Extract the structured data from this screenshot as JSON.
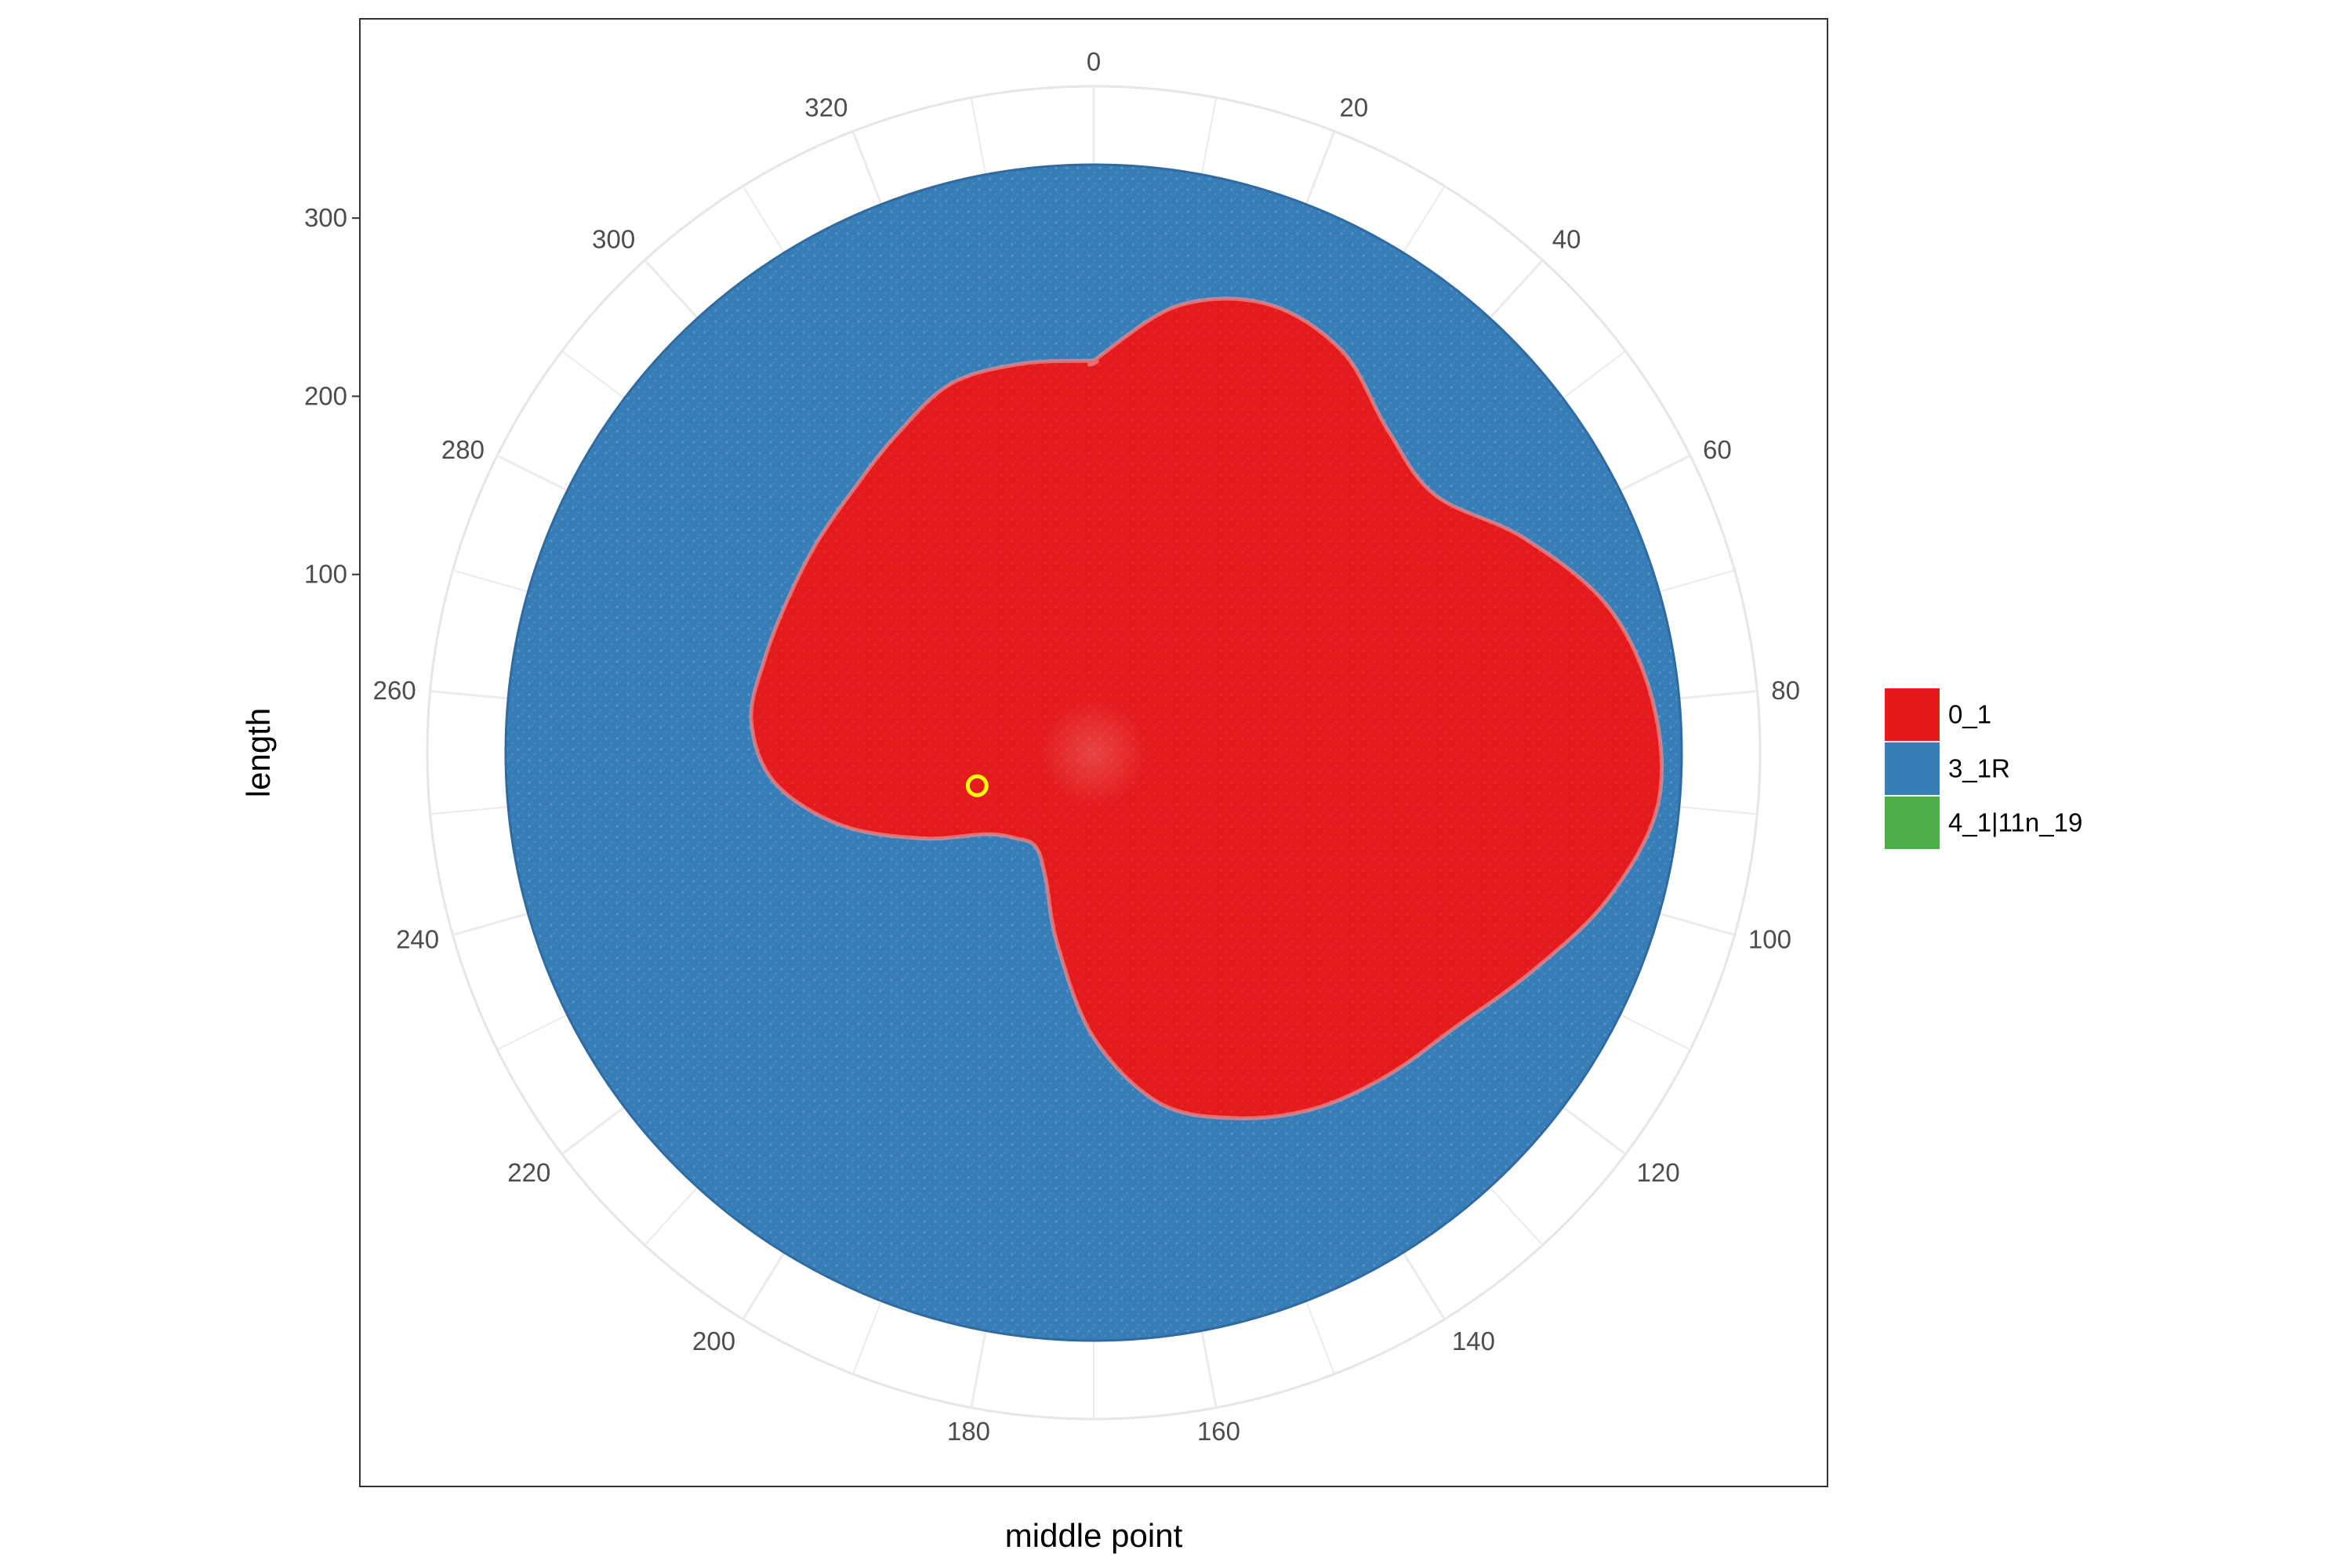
{
  "chart_data": {
    "type": "polar-area",
    "coordinate_system": "polar",
    "xlabel": "middle point",
    "ylabel": "length",
    "theta_ticks": [
      0,
      20,
      40,
      60,
      80,
      100,
      120,
      140,
      160,
      180,
      200,
      220,
      240,
      260,
      280,
      300,
      320
    ],
    "theta_range": [
      0,
      340
    ],
    "r_ticks": [
      100,
      200,
      300
    ],
    "r_range": [
      0,
      330
    ],
    "grid": true,
    "legend_position": "right",
    "series": [
      {
        "name": "0_1",
        "color": "#e41a1c",
        "boundary": [
          {
            "theta": 0,
            "r": 220
          },
          {
            "theta": 10,
            "r": 255
          },
          {
            "theta": 20,
            "r": 270
          },
          {
            "theta": 30,
            "r": 265
          },
          {
            "theta": 40,
            "r": 245
          },
          {
            "theta": 50,
            "r": 240
          },
          {
            "theta": 60,
            "r": 270
          },
          {
            "theta": 70,
            "r": 300
          },
          {
            "theta": 80,
            "r": 315
          },
          {
            "theta": 90,
            "r": 318
          },
          {
            "theta": 100,
            "r": 300
          },
          {
            "theta": 110,
            "r": 275
          },
          {
            "theta": 120,
            "r": 255
          },
          {
            "theta": 130,
            "r": 245
          },
          {
            "theta": 140,
            "r": 235
          },
          {
            "theta": 150,
            "r": 220
          },
          {
            "theta": 160,
            "r": 200
          },
          {
            "theta": 170,
            "r": 160
          },
          {
            "theta": 180,
            "r": 110
          },
          {
            "theta": 190,
            "r": 75
          },
          {
            "theta": 200,
            "r": 62
          },
          {
            "theta": 210,
            "r": 65
          },
          {
            "theta": 220,
            "r": 76
          },
          {
            "theta": 230,
            "r": 108
          },
          {
            "theta": 240,
            "r": 148
          },
          {
            "theta": 250,
            "r": 180
          },
          {
            "theta": 260,
            "r": 193
          },
          {
            "theta": 270,
            "r": 192
          },
          {
            "theta": 280,
            "r": 192
          },
          {
            "theta": 290,
            "r": 195
          },
          {
            "theta": 300,
            "r": 200
          },
          {
            "theta": 310,
            "r": 210
          },
          {
            "theta": 320,
            "r": 222
          },
          {
            "theta": 330,
            "r": 222
          },
          {
            "theta": 340,
            "r": 220
          }
        ]
      },
      {
        "name": "3_1R",
        "color": "#377eb8",
        "r_max": 330
      },
      {
        "name": "4_1|11n_19",
        "color": "#4daf4a"
      }
    ],
    "highlight_point": {
      "theta": 240,
      "r": 68,
      "color": "#ffff00"
    }
  }
}
